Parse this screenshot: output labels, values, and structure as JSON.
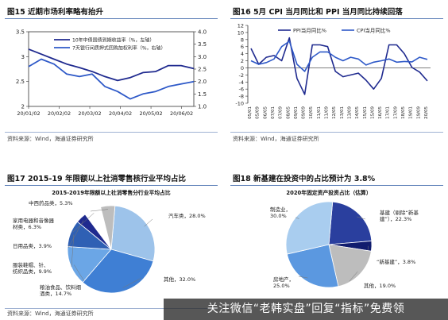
{
  "panels": [
    {
      "title": "图15 近期市场利率略有抬升",
      "source": "资料来源：Wind，海通证券研究所"
    },
    {
      "title": "图16 5月 CPI 当月同比和 PPI 当月同比持续回落",
      "source": "资料来源：Wind，海通证券研究所"
    },
    {
      "title": "图17 2015-19 年限额以上社消零售核行业平均占比",
      "source": "资料来源：Wind，海通证券研究所"
    },
    {
      "title": "图18 新基建在投资中的占比预计为 3.8%",
      "source": ""
    }
  ],
  "watermark": "关注微信“老韩实盘”回复“指标”免费领",
  "colors": {
    "navy": "#1f2a8f",
    "blue": "#2e59c8",
    "border": "#5d7fb8"
  },
  "chart_data": [
    {
      "type": "line",
      "title": "",
      "series": [
        {
          "name": "10年中债国债到期收益率（%，左轴）",
          "axis": "left",
          "color": "#1f2a8f",
          "x": [
            "20/01/02",
            "20/01/16",
            "20/01/31",
            "20/02/14",
            "20/02/28",
            "20/03/13",
            "20/03/27",
            "20/04/10",
            "20/04/24",
            "20/05/08",
            "20/05/22",
            "20/06/05",
            "20/06/19",
            "20/06/30"
          ],
          "values": [
            3.15,
            3.05,
            2.95,
            2.85,
            2.78,
            2.7,
            2.6,
            2.52,
            2.58,
            2.68,
            2.7,
            2.82,
            2.82,
            2.76
          ]
        },
        {
          "name": "7天银行间质押式回购加权利率（%，右轴）",
          "axis": "right",
          "color": "#2e59c8",
          "x": [
            "20/01/02",
            "20/01/16",
            "20/01/31",
            "20/02/14",
            "20/02/28",
            "20/03/13",
            "20/03/27",
            "20/04/10",
            "20/04/24",
            "20/05/08",
            "20/05/22",
            "20/06/05",
            "20/06/19",
            "20/06/30"
          ],
          "values": [
            2.6,
            2.9,
            2.7,
            2.3,
            2.2,
            2.3,
            1.8,
            1.6,
            1.3,
            1.5,
            1.6,
            1.8,
            1.9,
            2.0
          ]
        }
      ],
      "x_ticks": [
        "20/01/02",
        "20/02/02",
        "20/03/02",
        "20/04/02",
        "20/05/02",
        "20/06/02"
      ],
      "ylim_left": [
        2.0,
        3.5
      ],
      "yticks_left": [
        "3.5",
        "3",
        "2.5",
        "2"
      ],
      "ylim_right": [
        1.0,
        4.0
      ],
      "yticks_right": [
        "4.0",
        "3.5",
        "3.0",
        "2.5",
        "2.0",
        "1.5",
        "1.0"
      ],
      "legend": "top-center"
    },
    {
      "type": "line",
      "title": "",
      "series": [
        {
          "name": "PPI当月同比%",
          "color": "#1f2a8f",
          "x": [
            "05",
            "05/09",
            "06/05",
            "07/01",
            "07/09",
            "08/05",
            "09/01",
            "09/09",
            "10/05",
            "11/01",
            "11/09",
            "12/05",
            "13/01",
            "13/09",
            "14/05",
            "15/01",
            "15/09",
            "16/05",
            "17/01",
            "17/09",
            "18/05",
            "19/01",
            "19/09",
            "20/05"
          ],
          "values": [
            5.5,
            1.0,
            3.0,
            3.5,
            2.0,
            8.5,
            -3.0,
            -7.5,
            6.5,
            6.5,
            6.0,
            -1.0,
            -2.5,
            -2.0,
            -1.5,
            -3.5,
            -6.0,
            -3.0,
            6.5,
            6.5,
            4.0,
            0.1,
            -1.2,
            -3.7
          ]
        },
        {
          "name": "CPI当月同比%",
          "color": "#2e59c8",
          "x": [
            "05",
            "05/09",
            "06/05",
            "07/01",
            "07/09",
            "08/05",
            "09/01",
            "09/09",
            "10/05",
            "11/01",
            "11/09",
            "12/05",
            "13/01",
            "13/09",
            "14/05",
            "15/01",
            "15/09",
            "16/05",
            "17/01",
            "17/09",
            "18/05",
            "19/01",
            "19/09",
            "20/05"
          ],
          "values": [
            2.0,
            1.0,
            1.5,
            2.5,
            6.0,
            7.5,
            1.0,
            -1.0,
            3.0,
            4.5,
            4.5,
            3.0,
            2.0,
            3.0,
            2.5,
            0.8,
            1.6,
            2.0,
            2.5,
            1.6,
            1.8,
            1.7,
            3.0,
            2.4
          ]
        }
      ],
      "x_ticks": [
        "05/01",
        "05/09",
        "06/05",
        "07/01",
        "07/09",
        "08/05",
        "09/01",
        "09/09",
        "10/05",
        "11/01",
        "11/09",
        "12/05",
        "13/01",
        "13/09",
        "14/05",
        "15/01",
        "15/09",
        "16/05",
        "17/01",
        "17/09",
        "18/05",
        "19/01",
        "19/09",
        "20/05"
      ],
      "ylim": [
        -10,
        12
      ],
      "yticks": [
        "12",
        "10",
        "8",
        "6",
        "4",
        "2",
        "0",
        "-2",
        "-4",
        "-6",
        "-8",
        "-10"
      ],
      "legend": "top-right"
    },
    {
      "type": "pie",
      "title": "2015-2019年限额以上社消零售分行业平均占比",
      "slices": [
        {
          "label": "汽车类",
          "value": 28.0,
          "display": "汽车类，28.0%",
          "color": "#9dc3ea"
        },
        {
          "label": "其他",
          "value": 32.0,
          "display": "其他，32.0%",
          "color": "#3f7fd4"
        },
        {
          "label": "粮油食品、饮料烟酒类",
          "value": 14.7,
          "display": "粮油食品、饮料烟\n酒类，14.7%",
          "color": "#6ba6e6"
        },
        {
          "label": "服装鞋帽、针、纺织品类",
          "value": 9.9,
          "display": "服装鞋帽、针、\n纺织品类，9.9%",
          "color": "#2f60b4"
        },
        {
          "label": "日用品类",
          "value": 3.9,
          "display": "日用品类，3.9%",
          "color": "#1f2a8f"
        },
        {
          "label": "家用电器和音像器材类",
          "value": 6.3,
          "display": "家用电器和音像器\n材类，6.3%",
          "color": "#ffffff"
        },
        {
          "label": "中西药品类",
          "value": 5.3,
          "display": "中西药品类，5.3%",
          "color": "#bdbdbd"
        }
      ],
      "legend": "none"
    },
    {
      "type": "pie",
      "title": "2020年固定资产投资占比（估算）",
      "slices": [
        {
          "label": "基建（剔除“新基建”）",
          "value": 22.3,
          "display": "基建（剔除“新基\n建”），22.3%",
          "color": "#2a3f9e"
        },
        {
          "label": "“新基建”",
          "value": 3.8,
          "display": "“新基建”，3.8%",
          "color": "#111d6e"
        },
        {
          "label": "其他",
          "value": 19.0,
          "display": "其他，19.0%",
          "color": "#bdbdbd"
        },
        {
          "label": "房地产",
          "value": 25.0,
          "display": "房地产，\n25.0%",
          "color": "#5b98e0"
        },
        {
          "label": "制造业",
          "value": 30.0,
          "display": "制造业，\n30.0%",
          "color": "#a9cdef"
        }
      ],
      "legend": "none"
    }
  ]
}
